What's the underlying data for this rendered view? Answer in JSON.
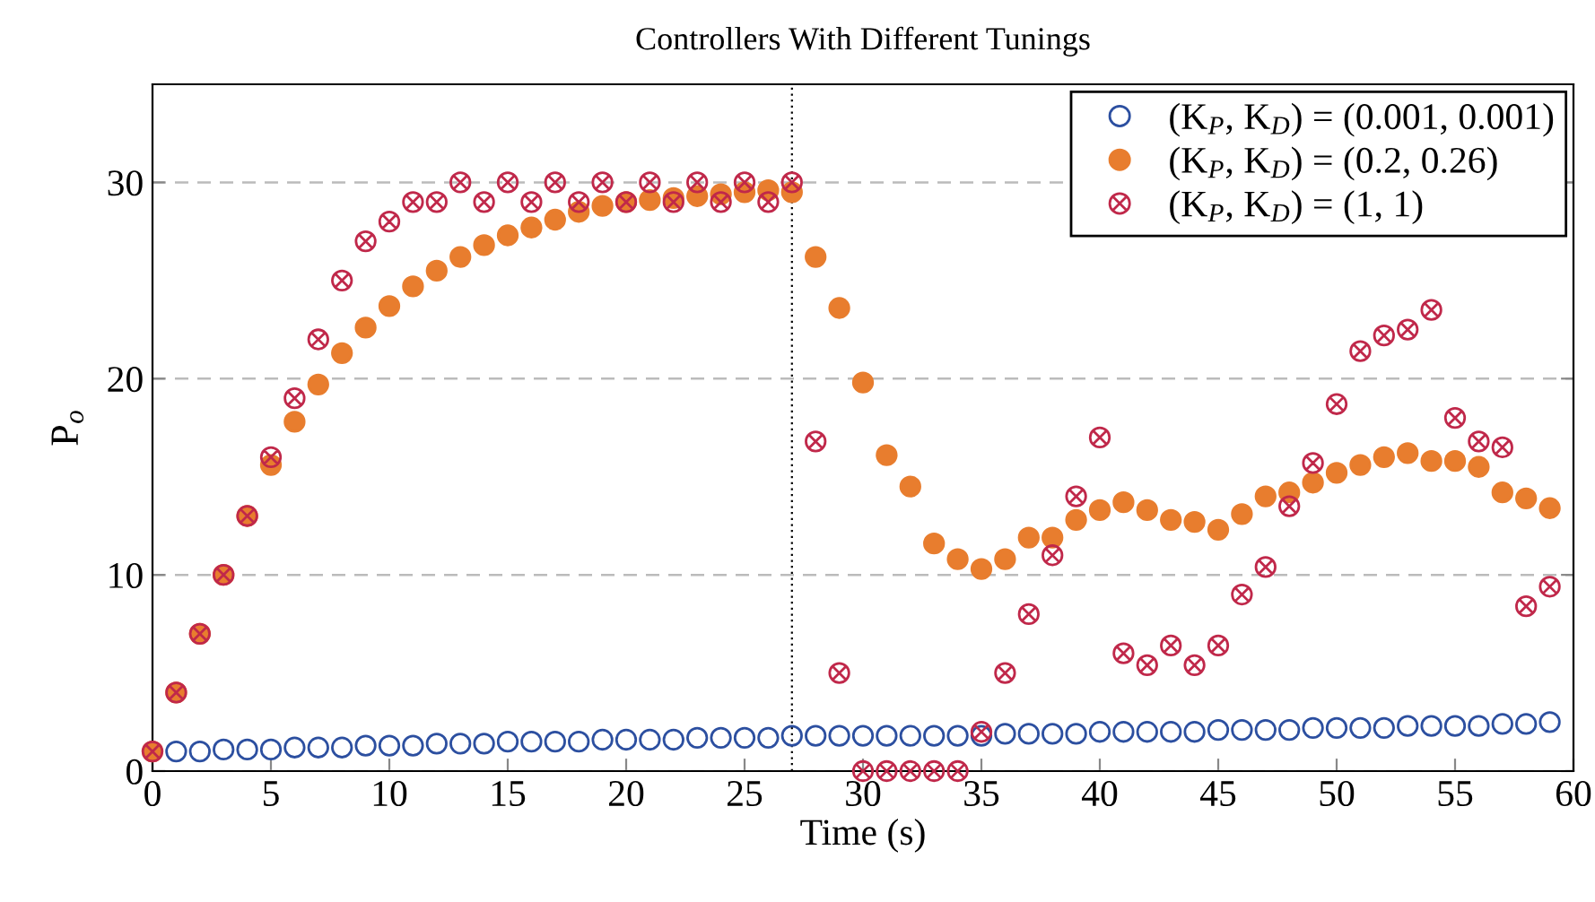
{
  "chart_data": {
    "type": "scatter",
    "title": "Controllers With Different Tunings",
    "xlabel": "Time (s)",
    "ylabel": "P$_{o}$",
    "xlim": [
      0,
      60
    ],
    "xticks": [
      0,
      5,
      10,
      15,
      20,
      25,
      30,
      35,
      40,
      45,
      50,
      55,
      60
    ],
    "ylim": [
      0,
      35
    ],
    "yticks": [
      0,
      10,
      20,
      30
    ],
    "grid": "y",
    "legend": "top right",
    "ref_lines": [
      {
        "axis": "x",
        "value": 27,
        "color": "#000000",
        "line_style": "dotted"
      }
    ],
    "series": [
      {
        "name": "(K$_{P}$, K$_{D}$) = (0.001, 0.001)",
        "color": "#2c4fa0",
        "marker": "circle",
        "x": [
          1,
          2,
          3,
          4,
          5,
          6,
          7,
          8,
          9,
          10,
          11,
          12,
          13,
          14,
          15,
          16,
          17,
          18,
          19,
          20,
          21,
          22,
          23,
          24,
          25,
          26,
          27,
          28,
          29,
          30,
          31,
          32,
          33,
          34,
          35,
          36,
          37,
          38,
          39,
          40,
          41,
          42,
          43,
          44,
          45,
          46,
          47,
          48,
          49,
          50,
          51,
          52,
          53,
          54,
          55,
          56,
          57,
          58,
          59
        ],
        "values": [
          1.0,
          1.0,
          1.1,
          1.1,
          1.1,
          1.2,
          1.2,
          1.2,
          1.3,
          1.3,
          1.3,
          1.4,
          1.4,
          1.4,
          1.5,
          1.5,
          1.5,
          1.5,
          1.6,
          1.6,
          1.6,
          1.6,
          1.7,
          1.7,
          1.7,
          1.7,
          1.8,
          1.8,
          1.8,
          1.8,
          1.8,
          1.8,
          1.8,
          1.8,
          1.8,
          1.9,
          1.9,
          1.9,
          1.9,
          2.0,
          2.0,
          2.0,
          2.0,
          2.0,
          2.1,
          2.1,
          2.1,
          2.1,
          2.2,
          2.2,
          2.2,
          2.2,
          2.3,
          2.3,
          2.3,
          2.3,
          2.4,
          2.4,
          2.5
        ]
      },
      {
        "name": "(K$_{P}$, K$_{D}$) = (0.2, 0.26)",
        "color": "#e87d2e",
        "x": [
          0,
          1,
          2,
          3,
          4,
          5,
          6,
          7,
          8,
          9,
          10,
          11,
          12,
          13,
          14,
          15,
          16,
          17,
          18,
          19,
          20,
          21,
          22,
          23,
          24,
          25,
          26,
          27,
          28,
          29,
          30,
          31,
          32,
          33,
          34,
          35,
          36,
          37,
          38,
          39,
          40,
          41,
          42,
          43,
          44,
          45,
          46,
          47,
          48,
          49,
          50,
          51,
          52,
          53,
          54,
          55,
          56,
          57,
          58,
          59
        ],
        "values": [
          1,
          4,
          7,
          10,
          13,
          15.6,
          17.8,
          19.7,
          21.3,
          22.6,
          23.7,
          24.7,
          25.5,
          26.2,
          26.8,
          27.3,
          27.7,
          28.1,
          28.5,
          28.8,
          29,
          29.1,
          29.2,
          29.3,
          29.4,
          29.5,
          29.6,
          29.5,
          26.2,
          23.6,
          19.8,
          16.1,
          14.5,
          11.6,
          10.8,
          10.3,
          10.8,
          11.9,
          11.9,
          12.8,
          13.3,
          13.7,
          13.3,
          12.8,
          12.7,
          12.3,
          13.1,
          14,
          14.2,
          14.7,
          15.2,
          15.6,
          16,
          16.2,
          15.8,
          15.8,
          15.5,
          14.2,
          13.9,
          13.4
        ]
      },
      {
        "name": "(K$_{P}$, K$_{D}$) = (1, 1)",
        "color": "#c0284a",
        "marker": "cross",
        "x": [
          0,
          1,
          2,
          3,
          4,
          5,
          6,
          7,
          8,
          9,
          10,
          11,
          12,
          13,
          14,
          15,
          16,
          17,
          18,
          19,
          20,
          21,
          22,
          23,
          24,
          25,
          26,
          27,
          28,
          29,
          30,
          31,
          32,
          33,
          34,
          35,
          36,
          37,
          38,
          39,
          40,
          41,
          42,
          43,
          44,
          45,
          46,
          47,
          48,
          49,
          50,
          51,
          52,
          53,
          54,
          55,
          56,
          57,
          58,
          59
        ],
        "values": [
          1,
          4,
          7,
          10,
          13,
          16,
          19,
          22,
          25,
          27,
          28,
          29,
          29,
          30,
          29,
          30,
          29,
          30,
          29,
          30,
          29,
          30,
          29,
          30,
          29,
          30,
          29,
          30,
          16.8,
          5,
          0,
          0,
          0,
          0,
          0,
          2,
          5,
          8,
          11,
          14,
          17,
          6,
          5.4,
          6.4,
          5.4,
          6.4,
          9,
          10.4,
          13.5,
          15.7,
          18.7,
          21.4,
          22.2,
          22.5,
          23.5,
          18,
          16.8,
          16.5,
          8.4,
          9.4
        ]
      }
    ]
  }
}
